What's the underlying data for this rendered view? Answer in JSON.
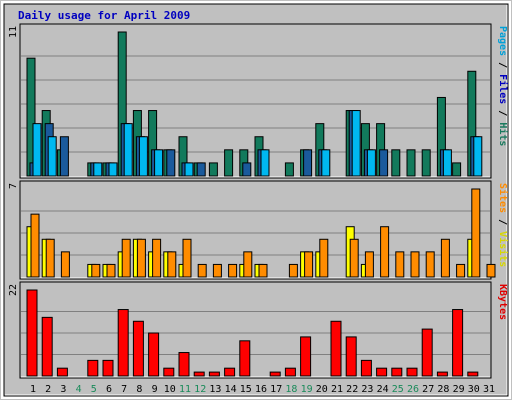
{
  "chart_data": {
    "type": "bar",
    "title": "Daily usage for April 2009",
    "categories": [
      "1",
      "2",
      "3",
      "4",
      "5",
      "6",
      "7",
      "8",
      "9",
      "10",
      "11",
      "12",
      "13",
      "14",
      "15",
      "16",
      "17",
      "18",
      "19",
      "20",
      "21",
      "22",
      "23",
      "24",
      "25",
      "26",
      "27",
      "28",
      "29",
      "30",
      "31"
    ],
    "weekend_days": [
      "4",
      "5",
      "11",
      "12",
      "18",
      "19",
      "25",
      "26"
    ],
    "panels": [
      {
        "id": "hits-files-pages",
        "max_label": "11",
        "ylim": [
          0,
          11
        ],
        "right_labels": [
          {
            "text": "Pages",
            "color": "#00a0d8"
          },
          {
            "text": " / ",
            "color": "#000000"
          },
          {
            "text": "Files",
            "color": "#0000c0"
          },
          {
            "text": " / ",
            "color": "#000000"
          },
          {
            "text": "Hits",
            "color": "#1a7a5e"
          }
        ],
        "series": [
          {
            "name": "Hits",
            "color": "#127a5c",
            "values": [
              9,
              5,
              2,
              0,
              1,
              1,
              11,
              5,
              5,
              2,
              3,
              1,
              1,
              2,
              2,
              3,
              0,
              1,
              2,
              4,
              0,
              5,
              4,
              4,
              2,
              2,
              2,
              6,
              1,
              8,
              0
            ]
          },
          {
            "name": "Files",
            "color": "#1a5a9c",
            "values": [
              1,
              4,
              3,
              0,
              1,
              1,
              4,
              3,
              2,
              2,
              1,
              1,
              0,
              0,
              1,
              2,
              0,
              0,
              2,
              2,
              0,
              5,
              2,
              2,
              0,
              0,
              0,
              2,
              0,
              3,
              0
            ]
          },
          {
            "name": "Pages",
            "color": "#00b8f0",
            "values": [
              4,
              3,
              0,
              0,
              1,
              1,
              4,
              3,
              2,
              0,
              1,
              0,
              0,
              0,
              0,
              2,
              0,
              0,
              0,
              2,
              0,
              5,
              2,
              0,
              0,
              0,
              0,
              2,
              0,
              3,
              0
            ]
          }
        ]
      },
      {
        "id": "visits-sites",
        "max_label": "7",
        "ylim": [
          0,
          7
        ],
        "right_labels": [
          {
            "text": "Sites",
            "color": "#ff8c00"
          },
          {
            "text": " / ",
            "color": "#000000"
          },
          {
            "text": "Visits",
            "color": "#d8d800"
          }
        ],
        "series": [
          {
            "name": "Visits",
            "color": "#ffff00",
            "values": [
              4,
              3,
              0,
              0,
              1,
              1,
              2,
              3,
              2,
              2,
              1,
              0,
              0,
              0,
              1,
              1,
              0,
              0,
              2,
              2,
              0,
              4,
              1,
              0,
              0,
              0,
              0,
              0,
              0,
              3,
              0
            ]
          },
          {
            "name": "Sites",
            "color": "#ff8c00",
            "values": [
              5,
              3,
              2,
              0,
              1,
              1,
              3,
              3,
              3,
              2,
              3,
              1,
              1,
              1,
              2,
              1,
              0,
              1,
              2,
              3,
              0,
              3,
              2,
              4,
              2,
              2,
              2,
              3,
              1,
              7,
              1
            ]
          }
        ]
      },
      {
        "id": "kbytes",
        "max_label": "22",
        "ylim": [
          0,
          22
        ],
        "right_labels": [
          {
            "text": "KBytes",
            "color": "#e00000"
          }
        ],
        "series": [
          {
            "name": "KBytes",
            "color": "#ff0000",
            "values": [
              22,
              15,
              2,
              0,
              4,
              4,
              17,
              14,
              11,
              2,
              6,
              1,
              1,
              2,
              9,
              0,
              1,
              2,
              10,
              0,
              14,
              10,
              4,
              2,
              2,
              2,
              12,
              1,
              17,
              1,
              0
            ]
          }
        ]
      }
    ],
    "colors": {
      "background": "#c0c0c0",
      "title": "#0000c0",
      "grid": "#808080",
      "weekday_label": "#000000",
      "weekend_label": "#1a8a5a"
    }
  }
}
